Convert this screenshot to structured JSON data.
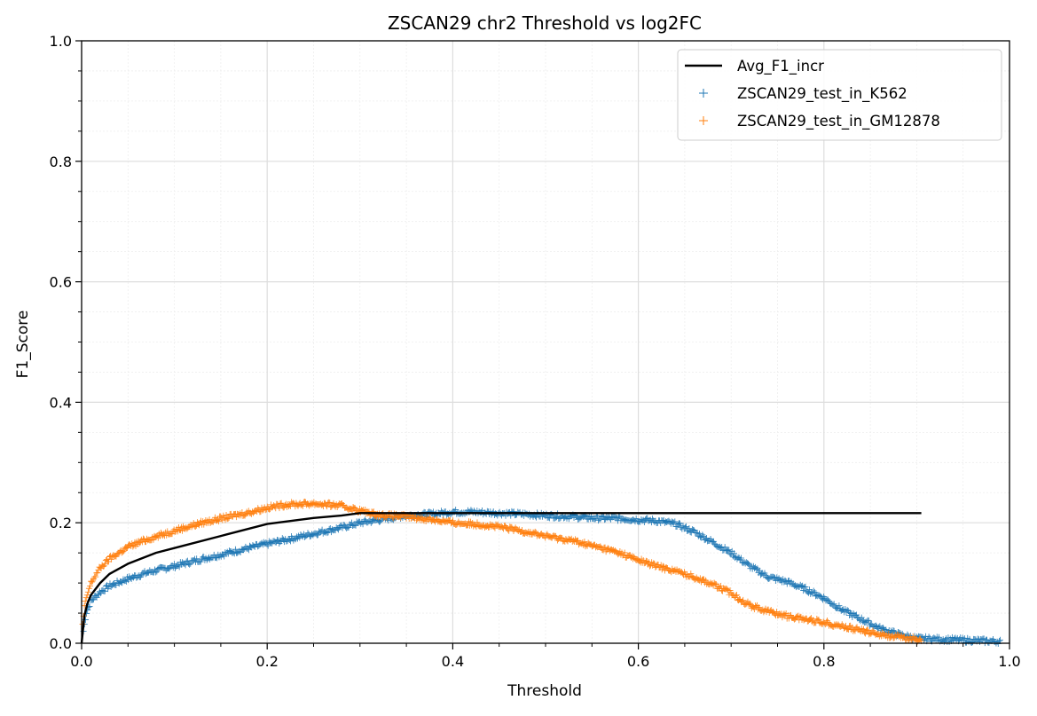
{
  "chart_data": {
    "type": "scatter",
    "title": "ZSCAN29 chr2 Threshold vs log2FC",
    "xlabel": "Threshold",
    "ylabel": "F1_Score",
    "xlim": [
      0.0,
      1.0
    ],
    "ylim": [
      0.0,
      1.0
    ],
    "x_ticks": [
      "0.0",
      "0.2",
      "0.4",
      "0.6",
      "0.8",
      "1.0"
    ],
    "y_ticks": [
      "0.0",
      "0.2",
      "0.4",
      "0.6",
      "0.8",
      "1.0"
    ],
    "grid": true,
    "minor_grid": true,
    "legend_position": "top-right",
    "series": [
      {
        "name": "Avg_F1_incr",
        "kind": "line",
        "color": "#000000",
        "x": [
          0.0,
          0.003,
          0.006,
          0.01,
          0.02,
          0.03,
          0.05,
          0.08,
          0.1,
          0.15,
          0.2,
          0.25,
          0.28,
          0.3,
          0.35,
          0.4,
          0.5,
          0.6,
          0.7,
          0.8,
          0.905
        ],
        "y": [
          0.0,
          0.045,
          0.065,
          0.08,
          0.1,
          0.115,
          0.132,
          0.15,
          0.158,
          0.178,
          0.198,
          0.208,
          0.212,
          0.216,
          0.216,
          0.216,
          0.216,
          0.216,
          0.216,
          0.216,
          0.216
        ]
      },
      {
        "name": "ZSCAN29_test_in_K562",
        "kind": "scatter",
        "marker": "+",
        "color": "#1f77b4",
        "x": [
          0.002,
          0.005,
          0.01,
          0.02,
          0.03,
          0.05,
          0.07,
          0.1,
          0.13,
          0.15,
          0.18,
          0.2,
          0.23,
          0.25,
          0.28,
          0.3,
          0.33,
          0.35,
          0.38,
          0.4,
          0.42,
          0.45,
          0.48,
          0.5,
          0.53,
          0.55,
          0.58,
          0.6,
          0.62,
          0.64,
          0.66,
          0.68,
          0.7,
          0.72,
          0.74,
          0.76,
          0.78,
          0.8,
          0.82,
          0.84,
          0.86,
          0.88,
          0.9,
          0.99
        ],
        "y": [
          0.02,
          0.05,
          0.07,
          0.085,
          0.095,
          0.107,
          0.117,
          0.128,
          0.14,
          0.147,
          0.158,
          0.165,
          0.175,
          0.182,
          0.192,
          0.2,
          0.207,
          0.212,
          0.215,
          0.218,
          0.218,
          0.216,
          0.214,
          0.212,
          0.21,
          0.208,
          0.207,
          0.205,
          0.203,
          0.198,
          0.185,
          0.168,
          0.15,
          0.128,
          0.11,
          0.102,
          0.09,
          0.075,
          0.055,
          0.04,
          0.025,
          0.015,
          0.008,
          0.003
        ]
      },
      {
        "name": "ZSCAN29_test_in_GM12878",
        "kind": "scatter",
        "marker": "+",
        "color": "#ff7f0e",
        "x": [
          0.001,
          0.003,
          0.006,
          0.01,
          0.02,
          0.03,
          0.05,
          0.07,
          0.1,
          0.13,
          0.15,
          0.18,
          0.2,
          0.22,
          0.25,
          0.28,
          0.3,
          0.32,
          0.35,
          0.38,
          0.4,
          0.43,
          0.45,
          0.48,
          0.5,
          0.53,
          0.55,
          0.58,
          0.6,
          0.62,
          0.64,
          0.66,
          0.68,
          0.7,
          0.72,
          0.74,
          0.76,
          0.78,
          0.8,
          0.82,
          0.85,
          0.88,
          0.9,
          0.905
        ],
        "y": [
          0.03,
          0.06,
          0.08,
          0.1,
          0.125,
          0.14,
          0.16,
          0.172,
          0.187,
          0.2,
          0.207,
          0.217,
          0.225,
          0.23,
          0.232,
          0.228,
          0.22,
          0.213,
          0.21,
          0.205,
          0.2,
          0.197,
          0.193,
          0.185,
          0.178,
          0.17,
          0.162,
          0.15,
          0.138,
          0.128,
          0.12,
          0.11,
          0.098,
          0.083,
          0.063,
          0.053,
          0.045,
          0.04,
          0.035,
          0.028,
          0.018,
          0.01,
          0.007,
          0.005
        ]
      }
    ]
  }
}
